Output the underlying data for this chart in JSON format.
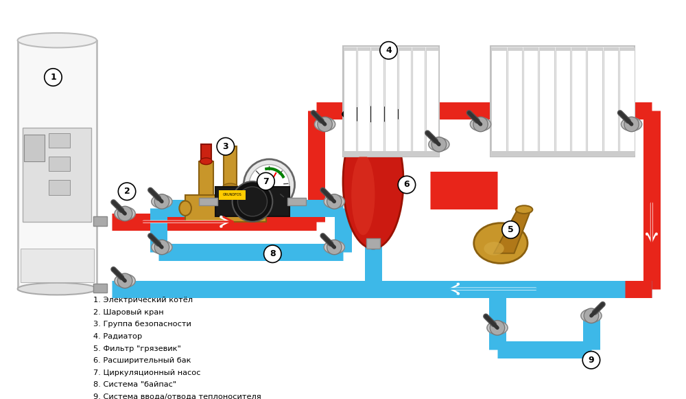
{
  "bg_color": "#ffffff",
  "red": "#e8251a",
  "blue": "#3db8e8",
  "pipe_lw": 18,
  "legend_items": [
    "1. Электрический котёл",
    "2. Шаровый кран",
    "3. Группа безопасности",
    "4. Радиатор",
    "5. Фильтр \"грязевик\"",
    "6. Расширительный бак",
    "7. Циркуляционный насос",
    "8. Система \"байпас\"",
    "9. Система ввода/отвода теплоносителя"
  ]
}
